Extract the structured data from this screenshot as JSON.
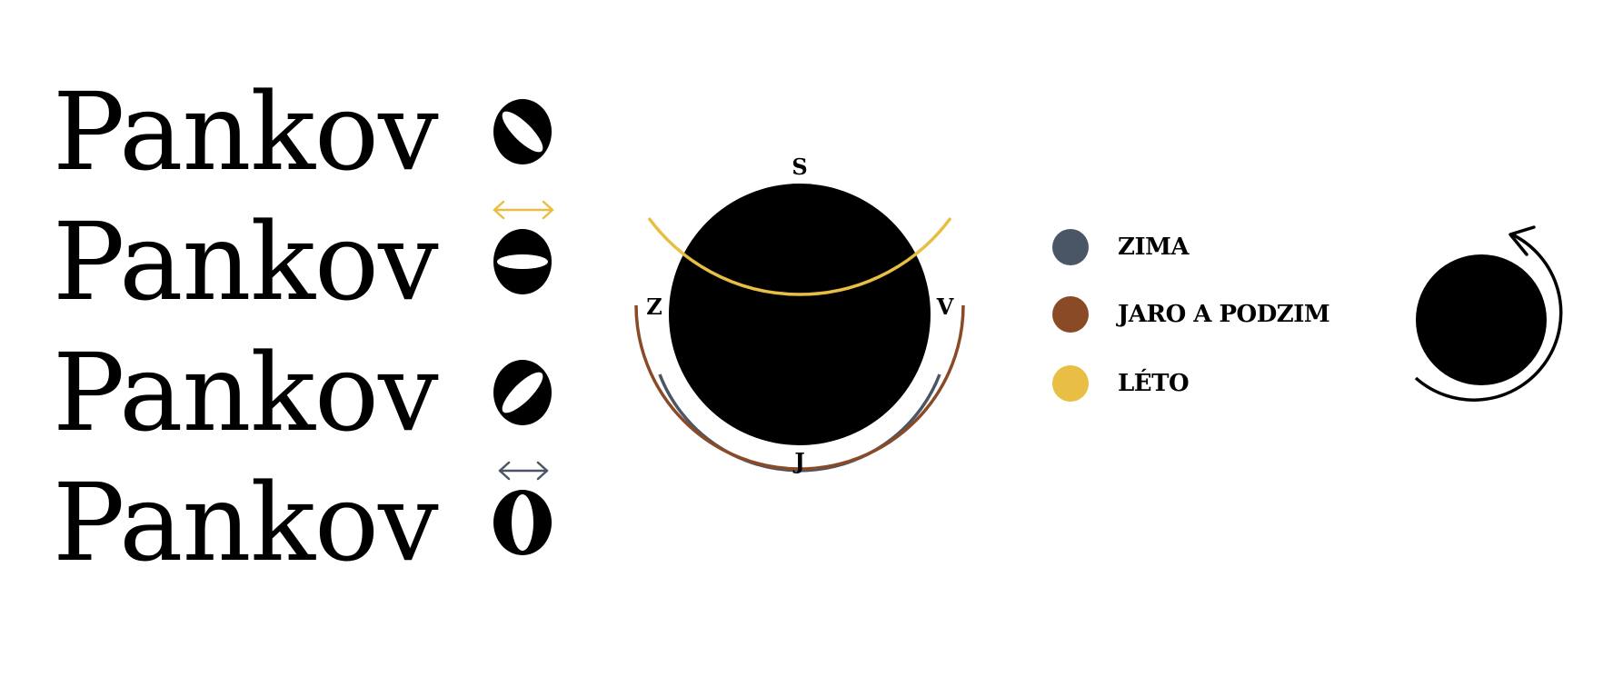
{
  "logos": [
    {
      "word": "Pankov",
      "variant": "tilt-right"
    },
    {
      "word": "Pankov",
      "variant": "horizontal",
      "arrow_color": "#E8BE45"
    },
    {
      "word": "Pankov",
      "variant": "tilt-left"
    },
    {
      "word": "Pankov",
      "variant": "vertical",
      "arrow_color": "#4A5666"
    }
  ],
  "compass": {
    "north": "S",
    "east": "V",
    "south": "J",
    "west": "Z",
    "arcs": [
      {
        "season": "winter",
        "color": "#4A5666"
      },
      {
        "season": "spring-autumn",
        "color": "#8B4A26"
      },
      {
        "season": "summer",
        "color": "#E8BE45"
      }
    ]
  },
  "legend": [
    {
      "label": "ZIMA",
      "color": "#4A5666"
    },
    {
      "label": "JARO A PODZIM",
      "color": "#8B4A26"
    },
    {
      "label": "LÉTO",
      "color": "#E8BE45"
    }
  ],
  "rotation_icon": "rotation-arrow-icon"
}
